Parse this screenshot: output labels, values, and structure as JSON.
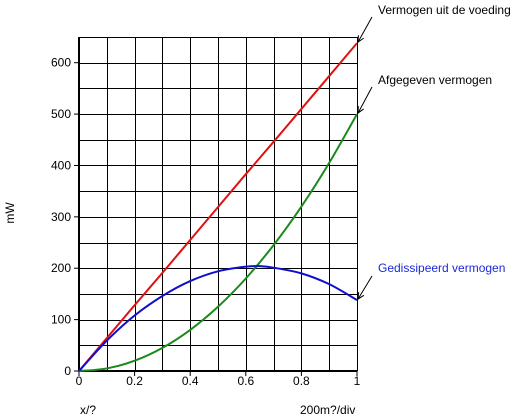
{
  "chart_data": {
    "type": "line",
    "ylabel": "mW",
    "xlabel": "x/?",
    "x_scale_note": "200m?/div",
    "xlim": [
      0,
      1
    ],
    "ylim": [
      0,
      650
    ],
    "x_ticks": [
      0,
      0.2,
      0.4,
      0.6,
      0.8,
      1
    ],
    "x_tick_labels": [
      "0",
      "0.2",
      "0.4",
      "0.6",
      "0.8",
      "1"
    ],
    "y_ticks": [
      0,
      100,
      200,
      300,
      400,
      500,
      600
    ],
    "y_tick_labels": [
      "0",
      "100",
      "200",
      "300",
      "400",
      "500",
      "600"
    ],
    "grid_x_step": 0.1,
    "grid_y_step": 50,
    "grid": true,
    "series": [
      {
        "name": "Vermogen uit de voeding",
        "color": "#e01010",
        "label_color": "#000000",
        "x": [
          0,
          0.1,
          0.2,
          0.3,
          0.4,
          0.5,
          0.6,
          0.7,
          0.8,
          0.9,
          1.0
        ],
        "y": [
          0,
          64,
          128,
          191,
          255,
          319,
          383,
          446,
          510,
          574,
          638
        ]
      },
      {
        "name": "Afgegeven vermogen",
        "color": "#1a8a1a",
        "label_color": "#000000",
        "x": [
          0,
          0.1,
          0.2,
          0.3,
          0.4,
          0.5,
          0.6,
          0.7,
          0.8,
          0.9,
          1.0
        ],
        "y": [
          0,
          5,
          20,
          45,
          80,
          125,
          180,
          245,
          320,
          405,
          500
        ]
      },
      {
        "name": "Gedissipeerd vermogen",
        "color": "#1010cc",
        "label_color": "#1a2ad8",
        "x": [
          0,
          0.1,
          0.2,
          0.3,
          0.4,
          0.5,
          0.6,
          0.65,
          0.7,
          0.8,
          0.9,
          1.0
        ],
        "y": [
          0,
          59,
          108,
          146,
          175,
          194,
          203,
          204,
          201,
          190,
          169,
          138
        ]
      }
    ]
  }
}
